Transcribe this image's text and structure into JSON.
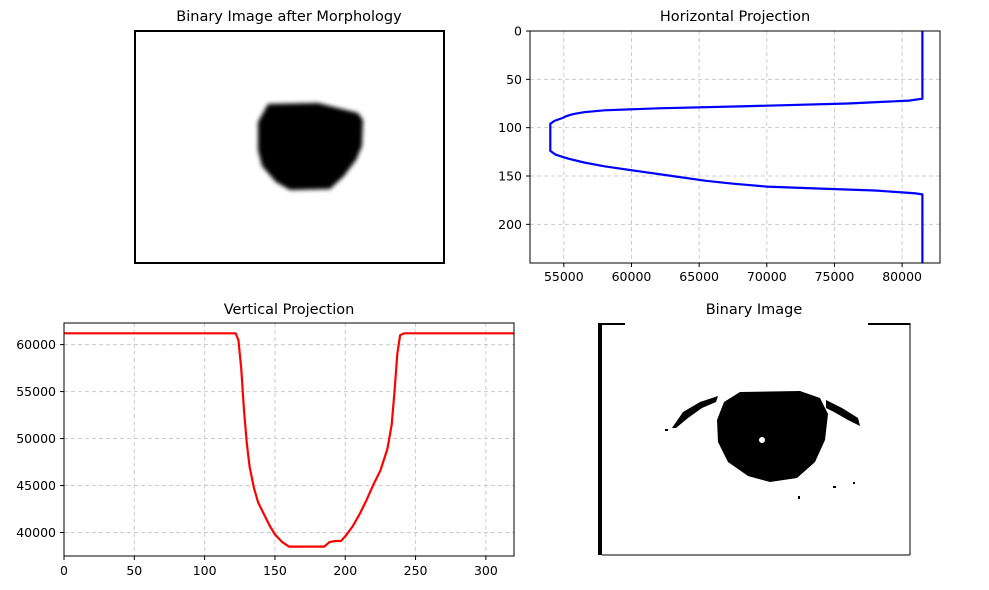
{
  "colors": {
    "horizontal_line": "#0000ff",
    "vertical_line": "#ff0000",
    "grid": "#cccccc",
    "ink": "#000000"
  },
  "panels": {
    "morph": {
      "title": "Binary Image after Morphology"
    },
    "binary": {
      "title": "Binary Image"
    }
  },
  "chart_data": [
    {
      "type": "line",
      "title": "Horizontal Projection",
      "orientation": "horizontal",
      "xlim": [
        52500,
        82800
      ],
      "ylim": [
        240,
        0
      ],
      "y_inverted": true,
      "xticks": [
        55000,
        60000,
        65000,
        70000,
        75000,
        80000
      ],
      "yticks": [
        0,
        50,
        100,
        150,
        200
      ],
      "grid": true,
      "series": [
        {
          "row": [
            0,
            60,
            70,
            72,
            75,
            78,
            80,
            82,
            84,
            86,
            88,
            90,
            93,
            96,
            100,
            110,
            120,
            124,
            128,
            132,
            136,
            140,
            145,
            150,
            155,
            158,
            161,
            163,
            165,
            167,
            168,
            169,
            180,
            240
          ],
          "sum": [
            81500,
            81500,
            81500,
            80500,
            76000,
            68000,
            62000,
            58000,
            56500,
            55700,
            55200,
            54900,
            54300,
            54000,
            54000,
            54000,
            54000,
            54000,
            54400,
            55300,
            56500,
            58000,
            60500,
            63000,
            65500,
            67500,
            70000,
            74000,
            78000,
            80000,
            81000,
            81500,
            81500,
            81500
          ]
        }
      ]
    },
    {
      "type": "line",
      "title": "Vertical Projection",
      "xlim": [
        0,
        320
      ],
      "ylim": [
        37500,
        62300
      ],
      "xticks": [
        0,
        50,
        100,
        150,
        200,
        250,
        300
      ],
      "yticks": [
        40000,
        45000,
        50000,
        55000,
        60000
      ],
      "grid": true,
      "series": [
        {
          "x": [
            0,
            100,
            122,
            124,
            126,
            128,
            130,
            132,
            135,
            138,
            142,
            146,
            150,
            155,
            160,
            170,
            185,
            189,
            193,
            197,
            200,
            205,
            210,
            215,
            220,
            225,
            230,
            233,
            235,
            237,
            239,
            242,
            260,
            320
          ],
          "y": [
            61200,
            61200,
            61200,
            60500,
            57500,
            53000,
            49500,
            47000,
            44800,
            43200,
            42000,
            40800,
            39800,
            39000,
            38500,
            38500,
            38500,
            39000,
            39100,
            39100,
            39600,
            40600,
            41900,
            43400,
            45100,
            46600,
            48900,
            51500,
            55000,
            59000,
            61000,
            61200,
            61200,
            61200
          ]
        }
      ]
    }
  ]
}
